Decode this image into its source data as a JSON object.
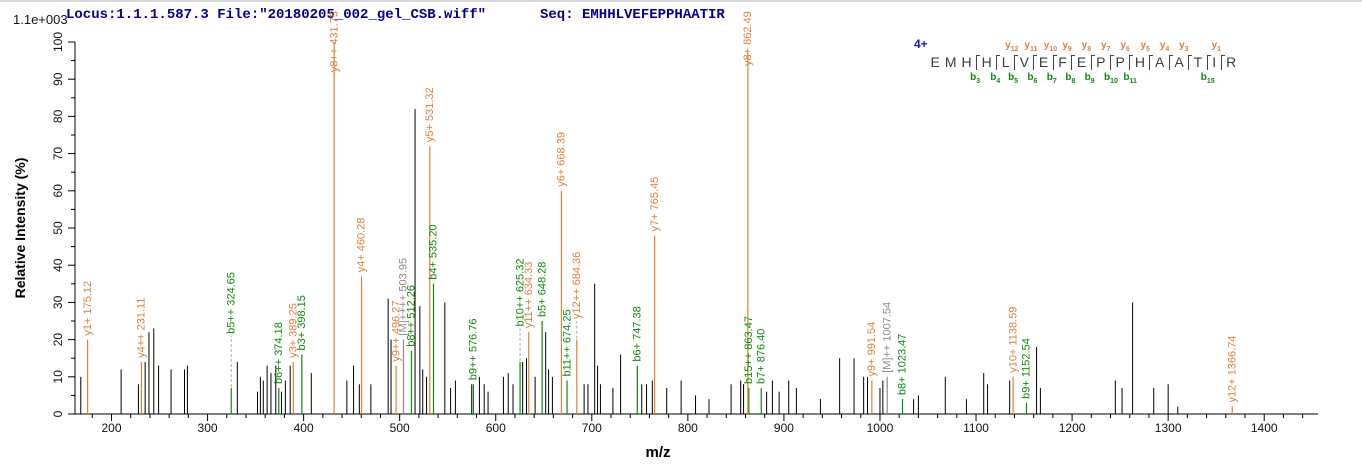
{
  "header": {
    "locus_file": "Locus:1.1.1.587.3 File:\"20180205_002_gel_CSB.wiff\"",
    "seq": "Seq: EMHHLVEFEPPHAATIR",
    "scale_label": "1.1e+003"
  },
  "peptide": {
    "charge_label": "4+",
    "residues": [
      "E",
      "M",
      "H",
      "H",
      "L",
      "V",
      "E",
      "F",
      "E",
      "P",
      "P",
      "H",
      "A",
      "A",
      "T",
      "I",
      "R"
    ],
    "cleavages": [
      {
        "after_index": 2,
        "b": "b3"
      },
      {
        "after_index": 3,
        "b": "b4"
      },
      {
        "after_index": 4,
        "y": "y12",
        "b": "b5"
      },
      {
        "after_index": 5,
        "y": "y11",
        "b": "b6"
      },
      {
        "after_index": 6,
        "y": "y10",
        "b": "b7"
      },
      {
        "after_index": 7,
        "y": "y9",
        "b": "b8"
      },
      {
        "after_index": 8,
        "y": "y8",
        "b": "b9"
      },
      {
        "after_index": 9,
        "y": "y7",
        "b": "b10"
      },
      {
        "after_index": 10,
        "y": "y6",
        "b": "b11"
      },
      {
        "after_index": 11,
        "y": "y5"
      },
      {
        "after_index": 12,
        "y": "y4"
      },
      {
        "after_index": 13,
        "y": "y3"
      },
      {
        "after_index": 14,
        "b": "b15"
      },
      {
        "after_index": 15,
        "y": "y1"
      }
    ]
  },
  "chart_data": {
    "type": "bar",
    "subtype": "ms2-fragment-spectrum",
    "title": "Locus:1.1.1.587.3 File:\"20180205_002_gel_CSB.wiff\"  Seq: EMHHLVEFEPPHAATIR",
    "scale_label": "1.1e+003",
    "xlabel": "m/z",
    "ylabel": "Relative  Intensity  (%)",
    "xlim": [
      162,
      1456
    ],
    "ylim": [
      0,
      100
    ],
    "x_major_tick_start": 200,
    "x_major_tick_end": 1400,
    "x_major_tick_step": 100,
    "x_minor_tick_step": 20,
    "y_major_tick_step": 10,
    "y_minor_tick_step": 5,
    "grid": false,
    "legend": false,
    "colors": {
      "y_ion": "#e0813b",
      "b_ion": "#0e8a0e",
      "precursor": "#8c8c8c",
      "unassigned": "#000000",
      "header_blue": "#00008b"
    },
    "series": [
      {
        "name": "unassigned",
        "color": "#000000",
        "peaks_mz_intensity": [
          [
            168,
            10
          ],
          [
            210,
            12
          ],
          [
            228,
            8
          ],
          [
            235,
            14
          ],
          [
            239,
            22
          ],
          [
            244,
            23
          ],
          [
            249,
            13
          ],
          [
            262,
            12
          ],
          [
            276,
            12
          ],
          [
            279,
            13
          ],
          [
            331,
            14
          ],
          [
            352,
            6
          ],
          [
            355,
            10
          ],
          [
            358,
            9
          ],
          [
            362,
            13
          ],
          [
            366,
            11
          ],
          [
            371,
            13
          ],
          [
            377,
            6
          ],
          [
            381,
            9
          ],
          [
            386,
            13
          ],
          [
            408,
            11
          ],
          [
            445,
            9
          ],
          [
            452,
            13
          ],
          [
            458,
            8
          ],
          [
            470,
            8
          ],
          [
            488,
            31
          ],
          [
            491,
            20
          ],
          [
            516,
            82
          ],
          [
            521,
            29
          ],
          [
            524,
            12
          ],
          [
            528,
            10
          ],
          [
            547,
            30
          ],
          [
            553,
            7
          ],
          [
            558,
            9
          ],
          [
            575,
            8
          ],
          [
            583,
            10
          ],
          [
            588,
            8
          ],
          [
            592,
            6
          ],
          [
            608,
            10
          ],
          [
            613,
            11
          ],
          [
            618,
            8
          ],
          [
            628,
            14
          ],
          [
            632,
            15
          ],
          [
            641,
            10
          ],
          [
            652,
            22
          ],
          [
            655,
            12
          ],
          [
            659,
            10
          ],
          [
            692,
            8
          ],
          [
            696,
            8
          ],
          [
            703,
            35
          ],
          [
            706,
            13
          ],
          [
            709,
            8
          ],
          [
            722,
            7
          ],
          [
            730,
            16
          ],
          [
            752,
            8
          ],
          [
            757,
            8
          ],
          [
            763,
            9
          ],
          [
            778,
            7
          ],
          [
            793,
            9
          ],
          [
            808,
            5
          ],
          [
            822,
            4
          ],
          [
            845,
            8
          ],
          [
            855,
            9
          ],
          [
            858,
            8
          ],
          [
            882,
            6
          ],
          [
            888,
            9
          ],
          [
            895,
            6
          ],
          [
            905,
            9
          ],
          [
            913,
            7
          ],
          [
            938,
            4
          ],
          [
            958,
            15
          ],
          [
            973,
            15
          ],
          [
            983,
            10
          ],
          [
            987,
            10
          ],
          [
            1000,
            7
          ],
          [
            1003,
            9
          ],
          [
            1035,
            4
          ],
          [
            1040,
            5
          ],
          [
            1068,
            10
          ],
          [
            1090,
            4
          ],
          [
            1108,
            11
          ],
          [
            1112,
            8
          ],
          [
            1135,
            9
          ],
          [
            1163,
            18
          ],
          [
            1167,
            7
          ],
          [
            1245,
            9
          ],
          [
            1252,
            7
          ],
          [
            1263,
            30
          ],
          [
            1285,
            7
          ],
          [
            1300,
            8
          ],
          [
            1310,
            2
          ]
        ]
      },
      {
        "name": "precursor-ions",
        "color": "#8c8c8c",
        "peaks": [
          {
            "label": "[M]++++",
            "mz": 503.95,
            "intensity": 20
          },
          {
            "label": "[M]++",
            "mz": 1007.54,
            "intensity": 10
          }
        ]
      },
      {
        "name": "b-ions",
        "color": "#0e8a0e",
        "peaks": [
          {
            "label": "b5++",
            "mz": 324.65,
            "intensity": 7,
            "leader": 14
          },
          {
            "label": "b6++",
            "mz": 374.18,
            "intensity": 7
          },
          {
            "label": "b3+",
            "mz": 398.15,
            "intensity": 16
          },
          {
            "label": "b8++",
            "mz": 512.26,
            "intensity": 17
          },
          {
            "label": "b4+",
            "mz": 535.2,
            "intensity": 35
          },
          {
            "label": "b9++",
            "mz": 576.76,
            "intensity": 8
          },
          {
            "label": "b10++",
            "mz": 625.32,
            "intensity": 14,
            "leader": 9
          },
          {
            "label": "b5+",
            "mz": 648.28,
            "intensity": 25
          },
          {
            "label": "b11++",
            "mz": 674.25,
            "intensity": 9
          },
          {
            "label": "b6+",
            "mz": 747.38,
            "intensity": 13
          },
          {
            "label": "b15++",
            "mz": 863.47,
            "intensity": 7
          },
          {
            "label": "b7+",
            "mz": 876.4,
            "intensity": 7
          },
          {
            "label": "b8+",
            "mz": 1023.47,
            "intensity": 4
          },
          {
            "label": "b9+",
            "mz": 1152.54,
            "intensity": 3
          }
        ]
      },
      {
        "name": "y-ions",
        "color": "#e0813b",
        "peaks": [
          {
            "label": "y1+",
            "mz": 175.12,
            "intensity": 20
          },
          {
            "label": "y4++",
            "mz": 231.11,
            "intensity": 14
          },
          {
            "label": "y3+",
            "mz": 389.25,
            "intensity": 14
          },
          {
            "label": "y8++",
            "mz": 431.75,
            "intensity": 100
          },
          {
            "label": "y4+",
            "mz": 460.28,
            "intensity": 37
          },
          {
            "label": "y9++",
            "mz": 496.27,
            "intensity": 13
          },
          {
            "label": "y5+",
            "mz": 531.32,
            "intensity": 72
          },
          {
            "label": "y11++",
            "mz": 634.33,
            "intensity": 22
          },
          {
            "label": "y6+",
            "mz": 668.39,
            "intensity": 60
          },
          {
            "label": "y12++",
            "mz": 684.36,
            "intensity": 20,
            "leader": 5
          },
          {
            "label": "y7+",
            "mz": 765.45,
            "intensity": 48
          },
          {
            "label": "y8+",
            "mz": 862.49,
            "intensity": 97
          },
          {
            "label": "y9+",
            "mz": 991.54,
            "intensity": 9
          },
          {
            "label": "y10+",
            "mz": 1138.59,
            "intensity": 10
          },
          {
            "label": "y12+",
            "mz": 1366.74,
            "intensity": 2
          }
        ]
      }
    ]
  }
}
